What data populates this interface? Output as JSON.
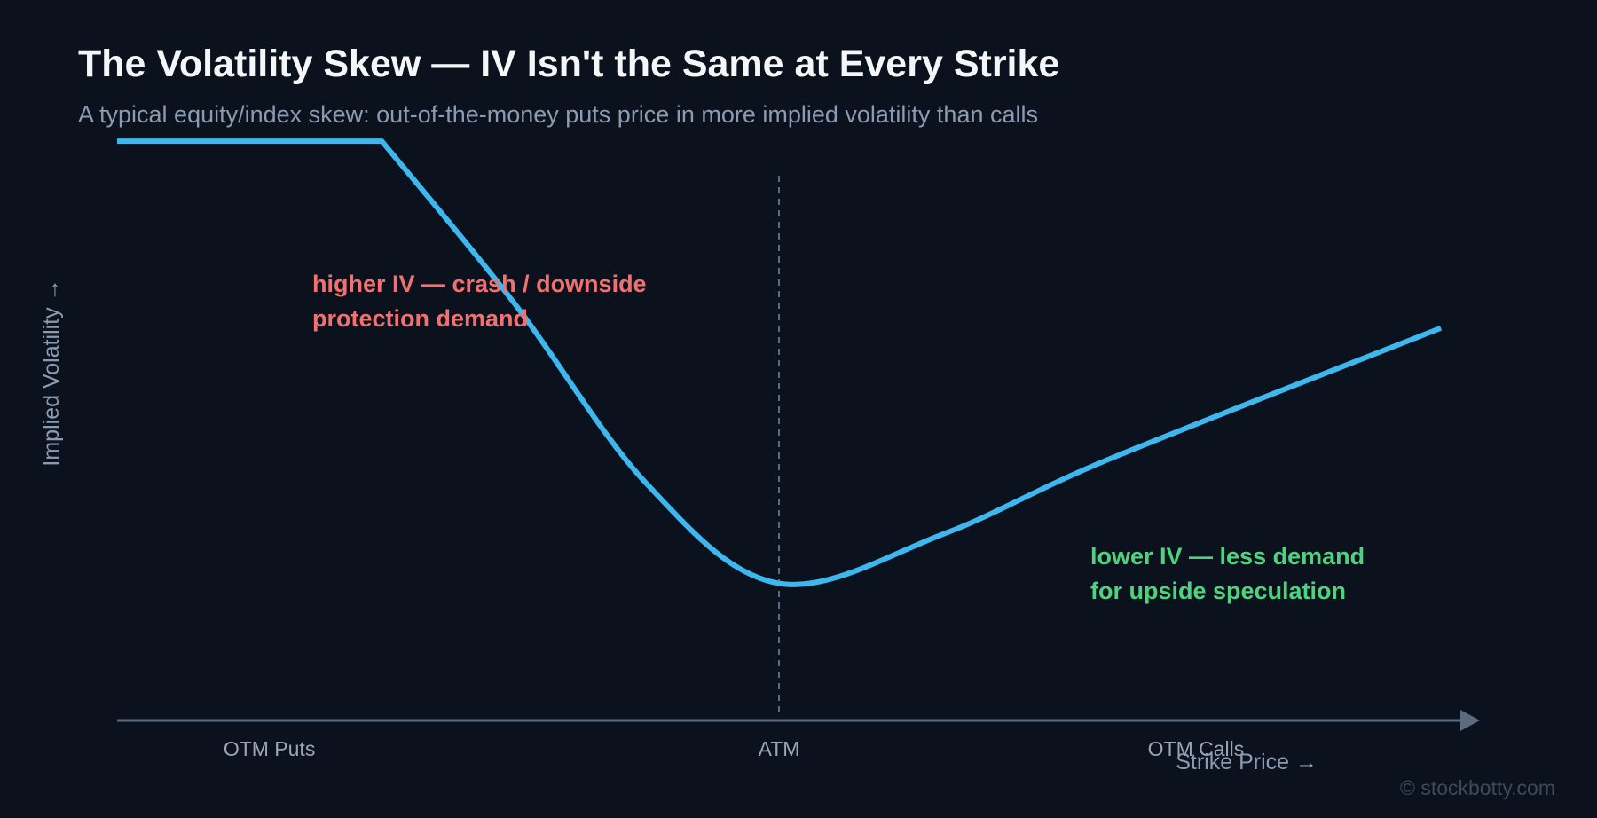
{
  "header": {
    "title": "The Volatility Skew — IV Isn't the Same at Every Strike",
    "subtitle": "A typical equity/index skew: out-of-the-money puts price in more implied volatility than calls"
  },
  "chart_data": {
    "type": "line",
    "title": "The Volatility Skew — IV Isn't the Same at Every Strike",
    "subtitle": "A typical equity/index skew: out-of-the-money puts price in more implied volatility than calls",
    "xlabel": "Strike Price →",
    "ylabel": "Implied Volatility →",
    "x_ticks": [
      "OTM Puts",
      "ATM",
      "OTM Calls"
    ],
    "x_units": "relative strike (ATM = 0)",
    "y_units": "relative implied volatility",
    "xlim": [
      -1,
      1
    ],
    "ylim": [
      0,
      1
    ],
    "grid": false,
    "series": [
      {
        "x": [
          -1.0,
          -0.6,
          -0.4,
          -0.2,
          0.0,
          0.25,
          0.5,
          1.0
        ],
        "y": [
          0.93,
          0.93,
          0.67,
          0.38,
          0.22,
          0.3,
          0.42,
          0.63
        ]
      }
    ],
    "reference_lines": [
      {
        "x": 0.0,
        "label": "ATM",
        "style": "dashed"
      }
    ],
    "annotations": [
      {
        "lines": [
          "higher IV — crash / downside",
          "protection demand"
        ],
        "color": "#f07170"
      },
      {
        "lines": [
          "lower IV — less demand",
          "for upside speculation"
        ],
        "color": "#4ed27d"
      }
    ]
  },
  "watermark": "© stockbotty.com",
  "colors": {
    "background": "#0b121d",
    "curve": "#3db7ee",
    "axis": "#5b6b82",
    "put_annotation": "#f07170",
    "call_annotation": "#4ed27d"
  }
}
